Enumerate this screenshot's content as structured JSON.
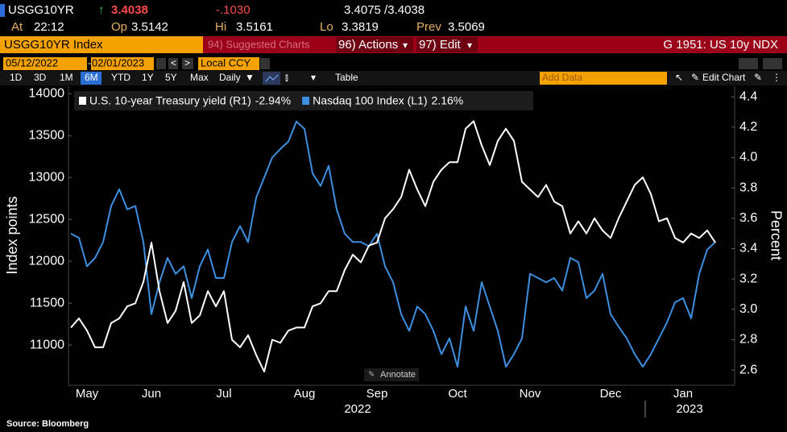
{
  "header": {
    "ticker": "USGG10YR",
    "last": "3.4038",
    "change": "-.1030",
    "bid_ask": "3.4075 /3.4038",
    "stats": [
      {
        "label": "At",
        "value": "22:12"
      },
      {
        "label": "Op",
        "value": "3.5142"
      },
      {
        "label": "Hi",
        "value": "3.5161"
      },
      {
        "label": "Lo",
        "value": "3.3819"
      },
      {
        "label": "Prev",
        "value": "3.5069"
      }
    ]
  },
  "menu": {
    "security": "USGG10YR Index",
    "suggested": "94) Suggested Charts",
    "actions": "96) Actions",
    "edit": "97) Edit",
    "chart_name": "G 1951: US 10y NDX"
  },
  "range": {
    "start": "05/12/2022",
    "end": "02/01/2023",
    "currency": "Local CCY"
  },
  "toolbar": {
    "periods": [
      "1D",
      "3D",
      "1M",
      "6M",
      "YTD",
      "1Y",
      "5Y",
      "Max"
    ],
    "active_period": "6M",
    "frequency": "Daily",
    "table": "Table",
    "add_data": "Add Data",
    "edit_chart": "Edit Chart"
  },
  "annotate": "Annotate",
  "source": "Source: Bloomberg",
  "chart_data": {
    "type": "line",
    "categories": [
      null,
      null,
      "May",
      null,
      null,
      null,
      null,
      null,
      null,
      null,
      "Jun",
      null,
      null,
      null,
      null,
      null,
      null,
      null,
      null,
      "Jul",
      null,
      null,
      null,
      null,
      null,
      null,
      null,
      null,
      null,
      "Aug",
      null,
      null,
      null,
      null,
      null,
      null,
      null,
      null,
      "Sep",
      null,
      null,
      null,
      null,
      null,
      null,
      null,
      null,
      null,
      "Oct",
      null,
      null,
      null,
      null,
      null,
      null,
      null,
      null,
      "Nov",
      null,
      null,
      null,
      null,
      null,
      null,
      null,
      null,
      null,
      "Dec",
      null,
      null,
      null,
      null,
      null,
      null,
      null,
      null,
      "Jan",
      null,
      null,
      null,
      null
    ],
    "year_labels": [
      "2022",
      "2023"
    ],
    "series": [
      {
        "name": "U.S. 10-year Treasury yield (R1)",
        "change_label": "-2.94%",
        "color": "#ffffff",
        "axis": "y2",
        "values": [
          2.88,
          2.94,
          2.86,
          2.75,
          2.75,
          2.91,
          2.94,
          3.02,
          3.04,
          3.18,
          3.44,
          3.12,
          2.91,
          2.99,
          3.18,
          2.91,
          2.96,
          3.12,
          3.02,
          3.12,
          2.8,
          2.75,
          2.83,
          2.7,
          2.59,
          2.8,
          2.78,
          2.86,
          2.88,
          2.88,
          3.02,
          3.04,
          3.12,
          3.12,
          3.26,
          3.36,
          3.31,
          3.42,
          3.44,
          3.6,
          3.66,
          3.74,
          3.92,
          3.79,
          3.68,
          3.84,
          3.92,
          3.97,
          3.97,
          4.19,
          4.24,
          4.08,
          3.95,
          4.11,
          4.19,
          4.11,
          3.84,
          3.79,
          3.74,
          3.82,
          3.71,
          3.68,
          3.5,
          3.58,
          3.5,
          3.6,
          3.52,
          3.47,
          3.6,
          3.71,
          3.82,
          3.87,
          3.76,
          3.58,
          3.6,
          3.47,
          3.44,
          3.5,
          3.47,
          3.52,
          3.44
        ]
      },
      {
        "name": "Nasdaq 100 Index (L1)",
        "change_label": "2.16%",
        "color": "#3d8fe0",
        "values": [
          12330,
          12280,
          11940,
          12040,
          12230,
          12660,
          12860,
          12620,
          12660,
          12230,
          11370,
          11750,
          12040,
          11850,
          11940,
          11560,
          11940,
          12140,
          11800,
          11800,
          12230,
          12420,
          12230,
          12760,
          13000,
          13240,
          13340,
          13430,
          13670,
          13580,
          13050,
          12900,
          13140,
          12620,
          12330,
          12230,
          12230,
          12180,
          12330,
          11940,
          11750,
          11370,
          11170,
          11460,
          11370,
          11170,
          10890,
          11080,
          10740,
          11460,
          11170,
          11750,
          11460,
          11170,
          10740,
          10890,
          11080,
          11850,
          11800,
          11750,
          11800,
          11650,
          12040,
          11990,
          11560,
          11650,
          11850,
          11370,
          11220,
          11080,
          10890,
          10740,
          10890,
          11080,
          11270,
          11510,
          11560,
          11320,
          11850,
          12140,
          12230
        ]
      }
    ],
    "y_label": "Index points",
    "y2_label": "Percent",
    "ylim": [
      10520,
      14090
    ],
    "yticks": [
      11000,
      11500,
      12000,
      12500,
      13000,
      13500,
      14000
    ],
    "y2lim": [
      2.5,
      4.47
    ],
    "y2ticks": [
      2.6,
      2.8,
      {
        "value": 3,
        "label": "3.0"
      },
      3.2,
      3.4,
      3.6,
      3.8,
      {
        "value": 4,
        "label": "4.0"
      },
      4.2,
      4.4
    ],
    "grid": false,
    "legend": "top-left"
  }
}
